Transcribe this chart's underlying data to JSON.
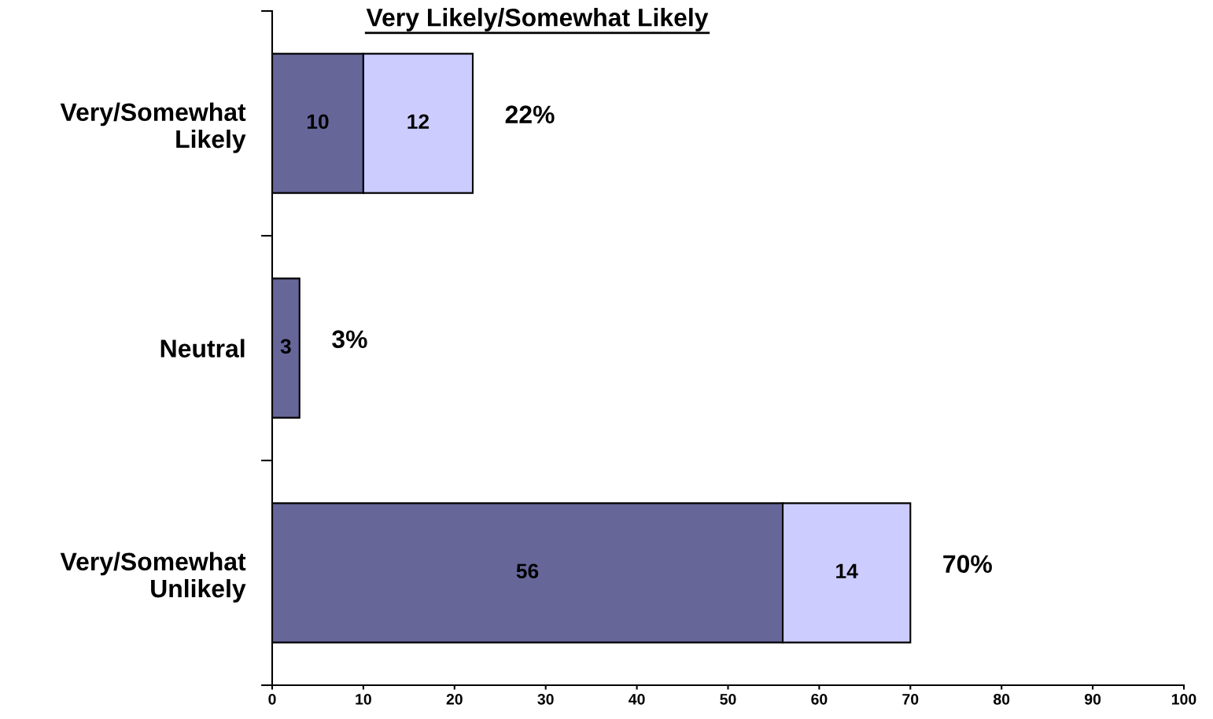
{
  "chart_data": {
    "type": "bar",
    "orientation": "horizontal",
    "stacked": true,
    "title": "Very Likely/Somewhat Likely",
    "categories": [
      "Very/Somewhat\nLikely",
      "Neutral",
      "Very/Somewhat\nUnlikely"
    ],
    "series": [
      {
        "color": "#666699",
        "values": [
          10,
          3,
          56
        ]
      },
      {
        "color": "#ccccff",
        "values": [
          12,
          null,
          14
        ]
      }
    ],
    "data_labels": true,
    "totals": [
      "22%",
      "3%",
      "70%"
    ],
    "xlim": [
      0,
      100
    ],
    "xticks": [
      0,
      10,
      20,
      30,
      40,
      50,
      60,
      70,
      80,
      90,
      100
    ],
    "grid": false
  }
}
